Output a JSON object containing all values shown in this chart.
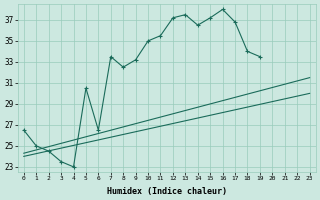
{
  "xlabel": "Humidex (Indice chaleur)",
  "background_color": "#cce8e0",
  "grid_color": "#99ccbb",
  "line_color": "#1a6b5a",
  "xlim": [
    -0.5,
    23.5
  ],
  "ylim": [
    22.5,
    38.5
  ],
  "xticks": [
    0,
    1,
    2,
    3,
    4,
    5,
    6,
    7,
    8,
    9,
    10,
    11,
    12,
    13,
    14,
    15,
    16,
    17,
    18,
    19,
    20,
    21,
    22,
    23
  ],
  "yticks": [
    23,
    25,
    27,
    29,
    31,
    33,
    35,
    37
  ],
  "line1_x": [
    0,
    1,
    2,
    3,
    4,
    5,
    6,
    7,
    8,
    9,
    10,
    11,
    12,
    13,
    14,
    15,
    16,
    17,
    18,
    19
  ],
  "line1_y": [
    26.5,
    25.0,
    24.5,
    23.5,
    23.0,
    30.5,
    26.5,
    33.5,
    32.5,
    33.2,
    35.0,
    35.5,
    37.2,
    37.5,
    36.5,
    37.2,
    38.0,
    36.8,
    34.0,
    33.5
  ],
  "line2_x": [
    0,
    23
  ],
  "line2_y": [
    24.3,
    31.5
  ],
  "line3_x": [
    0,
    23
  ],
  "line3_y": [
    24.0,
    30.0
  ]
}
